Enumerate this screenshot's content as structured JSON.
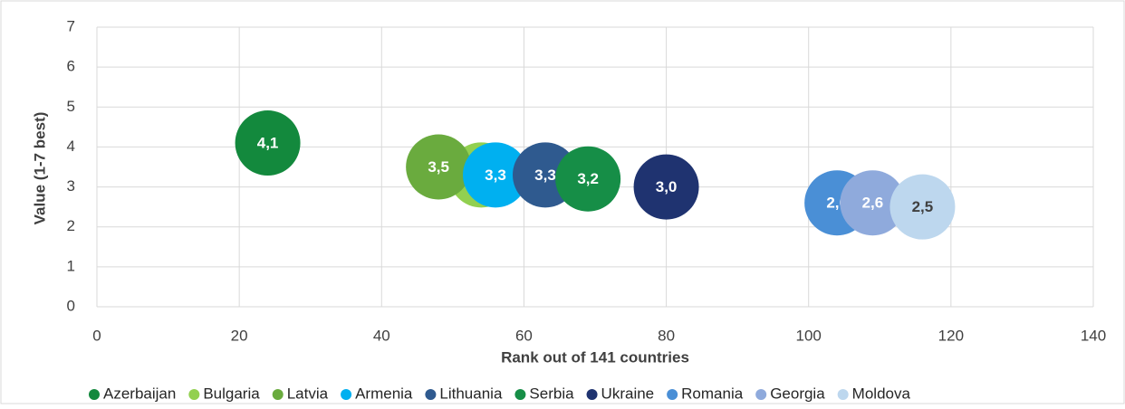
{
  "chart_data": {
    "type": "bubble",
    "xlabel": "Rank out of 141 countries",
    "ylabel": "Value  (1-7 best)",
    "xlim": [
      0,
      140
    ],
    "xticks": [
      0,
      20,
      40,
      60,
      80,
      100,
      120,
      140
    ],
    "ylim": [
      0,
      7
    ],
    "yticks": [
      0,
      1,
      2,
      3,
      4,
      5,
      6,
      7
    ],
    "grid": true,
    "legend": "bottom",
    "series": [
      {
        "name": "Azerbaijan",
        "color": "#13893d",
        "x": [
          24
        ],
        "values": [
          4.1
        ],
        "value_labels": [
          "4,1"
        ]
      },
      {
        "name": "Bulgaria",
        "color": "#92d050",
        "x": [
          54
        ],
        "values": [
          3.3
        ],
        "value_labels": [
          null
        ]
      },
      {
        "name": "Latvia",
        "color": "#6aab3e",
        "x": [
          48
        ],
        "values": [
          3.5
        ],
        "value_labels": [
          "3,5"
        ]
      },
      {
        "name": "Armenia",
        "color": "#00b0f0",
        "x": [
          56
        ],
        "values": [
          3.3
        ],
        "value_labels": [
          "3,3"
        ]
      },
      {
        "name": "Lithuania",
        "color": "#2f5a8f",
        "x": [
          63
        ],
        "values": [
          3.3
        ],
        "value_labels": [
          "3,3"
        ]
      },
      {
        "name": "Serbia",
        "color": "#168e47",
        "x": [
          69
        ],
        "values": [
          3.2
        ],
        "value_labels": [
          "3,2"
        ]
      },
      {
        "name": "Ukraine",
        "color": "#1f3370",
        "x": [
          80
        ],
        "values": [
          3.0
        ],
        "value_labels": [
          "3,0"
        ]
      },
      {
        "name": "Romania",
        "color": "#4a8fd6",
        "x": [
          104
        ],
        "values": [
          2.6
        ],
        "value_labels": [
          "2,6"
        ]
      },
      {
        "name": "Georgia",
        "color": "#8faadc",
        "x": [
          109
        ],
        "values": [
          2.6
        ],
        "value_labels": [
          "2,6"
        ]
      },
      {
        "name": "Moldova",
        "color": "#bdd7ee",
        "x": [
          116
        ],
        "values": [
          2.5
        ],
        "value_labels": [
          "2,5"
        ]
      }
    ]
  }
}
